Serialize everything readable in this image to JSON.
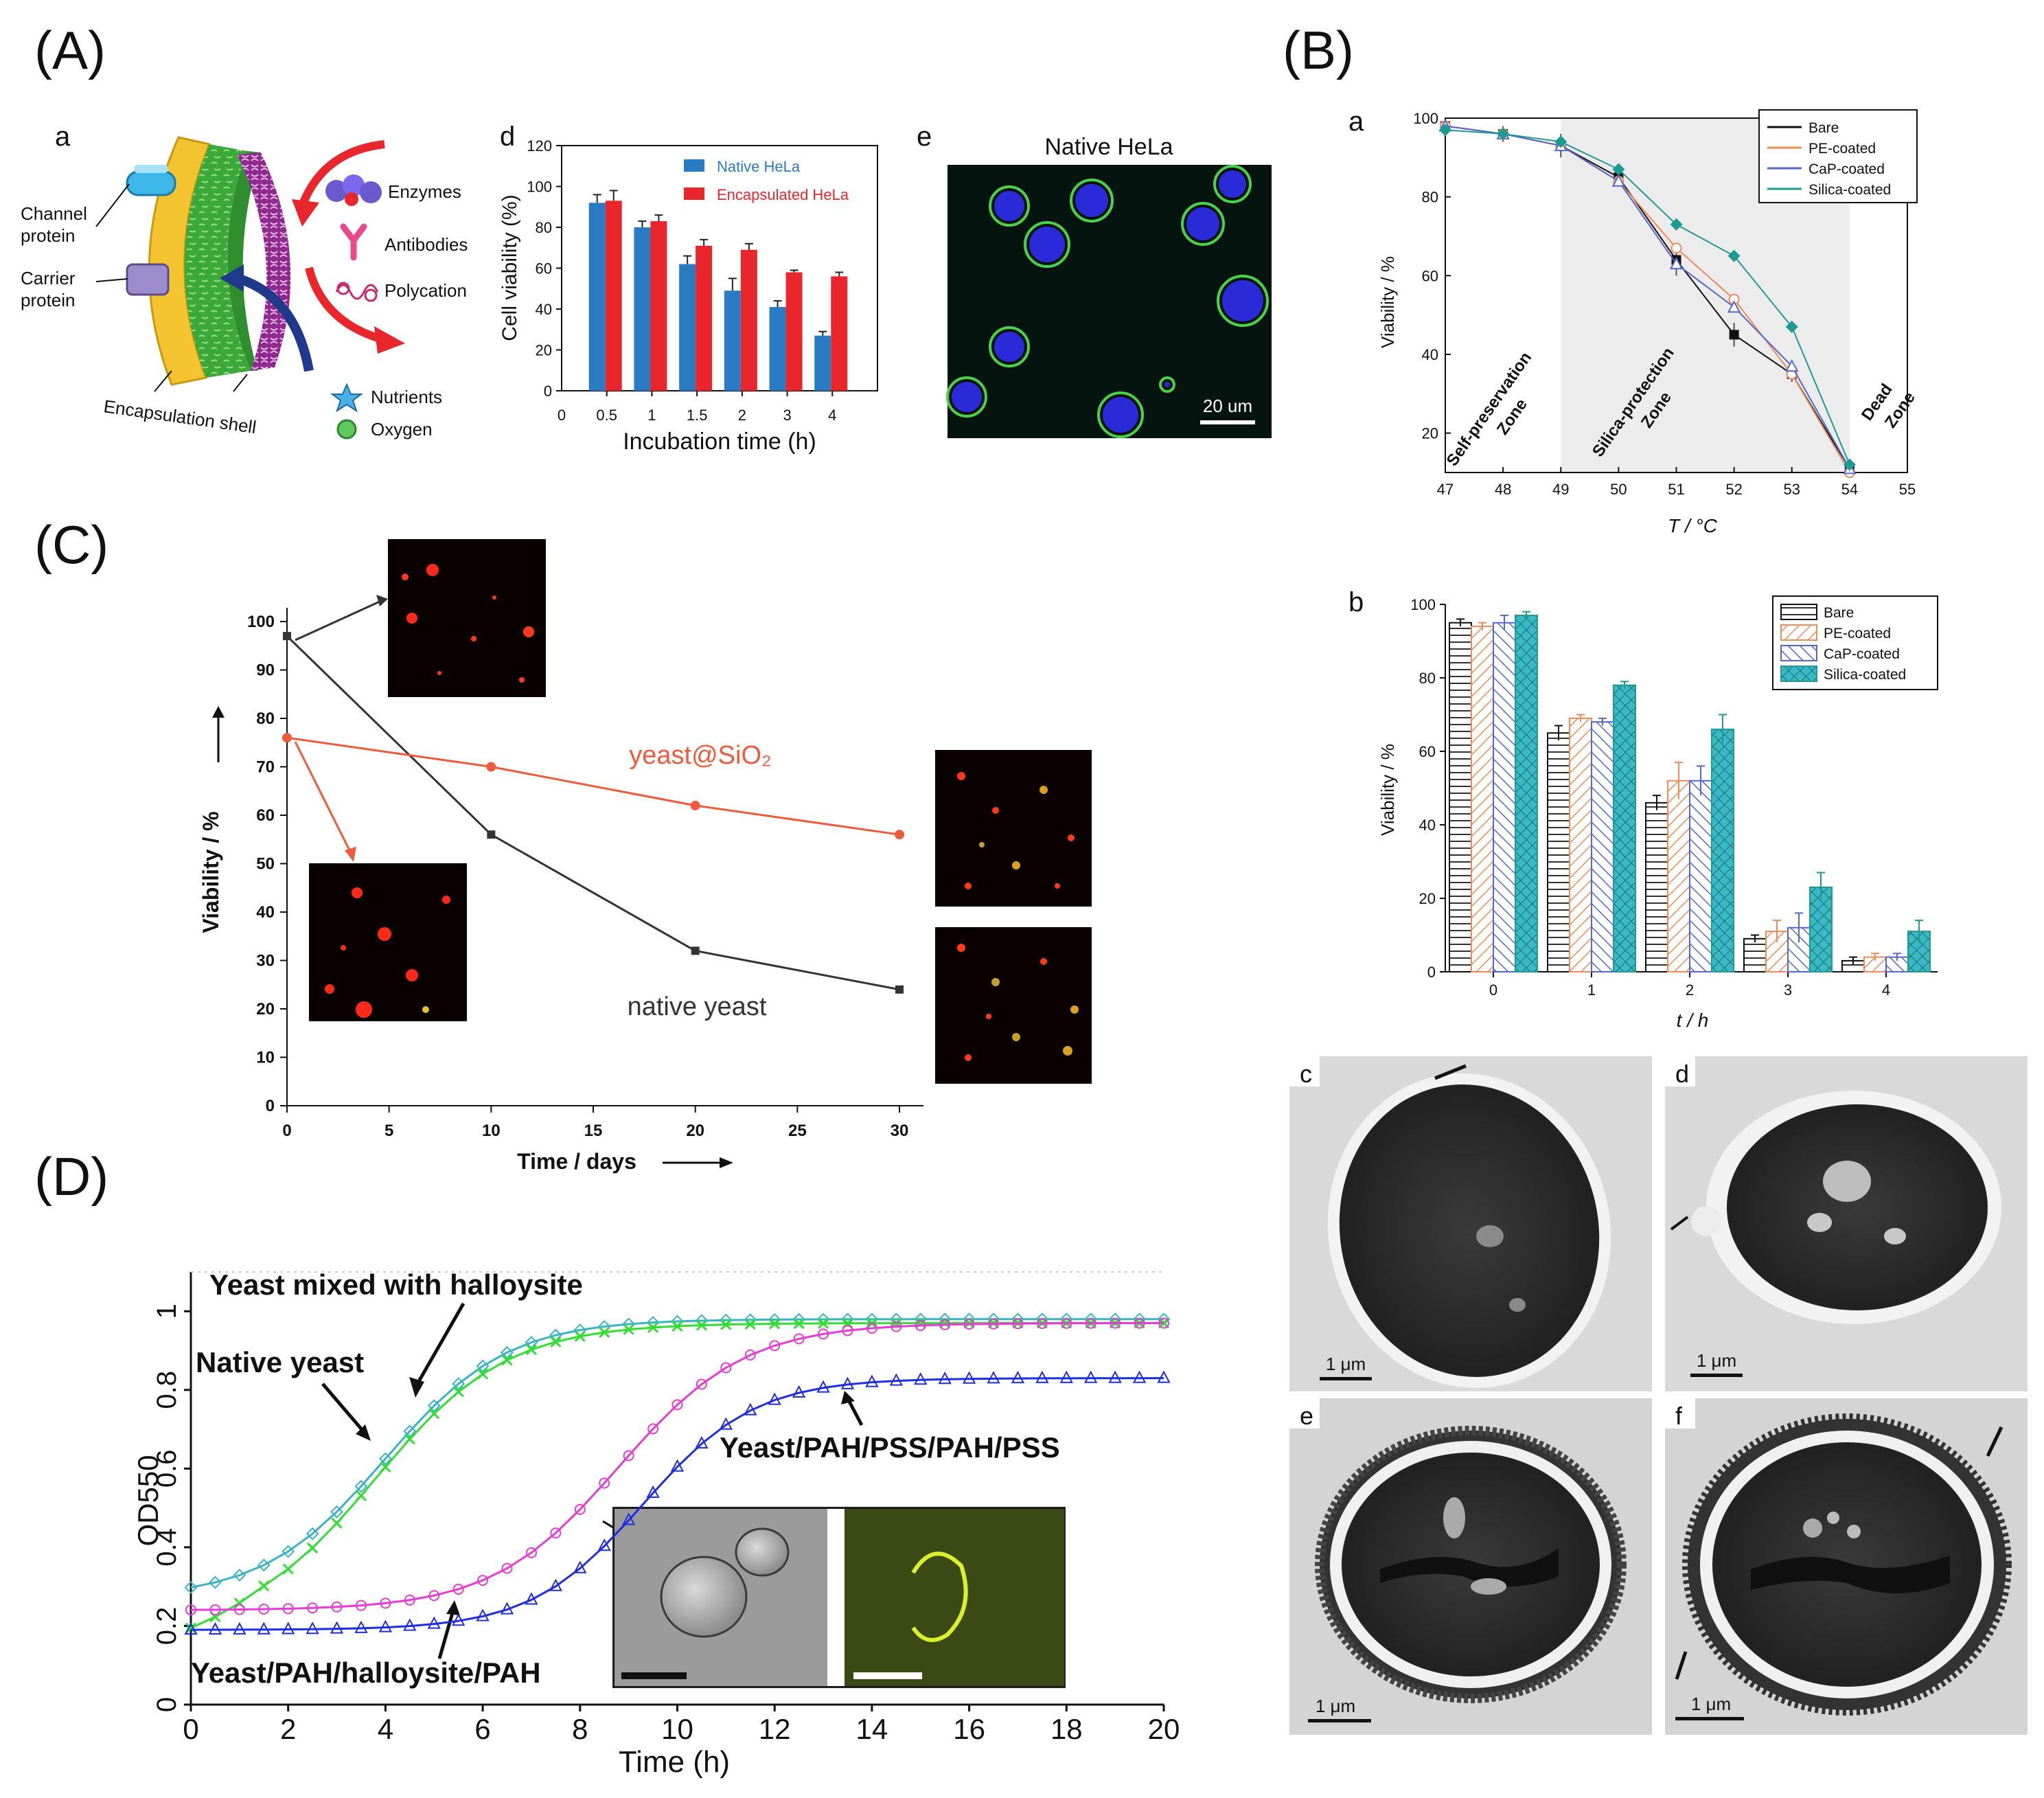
{
  "panel_labels": {
    "A": "(A)",
    "B": "(B)",
    "C": "(C)",
    "D": "(D)"
  },
  "colors": {
    "native": "#2a7ac4",
    "encap": "#e8262b",
    "bare": "#111111",
    "pe": "#f08a58",
    "cap": "#5566cc",
    "silica": "#1f9a93",
    "red_line": "#f05a3a",
    "pink": "#e63bd4",
    "blue": "#1f2de0",
    "green": "#33dd33",
    "cyan": "#3ab3c8"
  },
  "schematic_a": {
    "sub": "a",
    "channel": [
      "Channel",
      "protein"
    ],
    "carrier": [
      "Carrier",
      "protein"
    ],
    "enzymes": "Enzymes",
    "antibodies": "Antibodies",
    "polycation": "Polycation",
    "nutrients": "Nutrients",
    "oxygen": "Oxygen",
    "shell": "Encapsulation shell"
  },
  "micro_e": {
    "sub": "e",
    "title": "Native HeLa",
    "scale": "20 um"
  },
  "tem": [
    {
      "sub": "c",
      "scale": "1 μm"
    },
    {
      "sub": "d",
      "scale": "1 μm"
    },
    {
      "sub": "e",
      "scale": "1 μm"
    },
    {
      "sub": "f",
      "scale": "1 μm"
    }
  ],
  "chart_data": [
    {
      "id": "A-d",
      "sub": "d",
      "type": "bar",
      "categories": [
        "0.5",
        "1",
        "1.5",
        "2",
        "3",
        "4"
      ],
      "extra_tick": "0",
      "series": [
        {
          "name": "Native HeLa",
          "values": [
            92,
            80,
            62,
            49,
            41,
            27
          ],
          "errors": [
            4,
            3,
            4,
            6,
            3,
            2
          ]
        },
        {
          "name": "Encapsulated HeLa",
          "values": [
            93,
            83,
            71,
            69,
            58,
            56
          ],
          "errors": [
            5,
            3,
            3,
            3,
            1,
            2
          ]
        }
      ],
      "xlabel": "Incubation time (h)",
      "ylabel": "Cell viability (%)",
      "ylim": [
        0,
        120
      ],
      "yticks": [
        0,
        20,
        40,
        60,
        80,
        100,
        120
      ]
    },
    {
      "id": "B-a",
      "sub": "a",
      "type": "line",
      "x": [
        47,
        48,
        49,
        50,
        51,
        52,
        53,
        54
      ],
      "xticks": [
        47,
        48,
        49,
        50,
        51,
        52,
        53,
        54,
        55
      ],
      "series": [
        {
          "name": "Bare",
          "values": [
            98,
            96,
            93,
            85,
            64,
            45,
            35,
            11
          ]
        },
        {
          "name": "PE-coated",
          "values": [
            98,
            96,
            93,
            84,
            67,
            54,
            35,
            10
          ]
        },
        {
          "name": "CaP-coated",
          "values": [
            98,
            96,
            93,
            84,
            63,
            52,
            37,
            11
          ]
        },
        {
          "name": "Silica-coated",
          "values": [
            97,
            96,
            94,
            87,
            73,
            65,
            47,
            12
          ]
        }
      ],
      "errors": [
        1,
        2,
        3,
        2,
        4,
        3,
        2,
        1
      ],
      "zones": [
        "Self-preservation Zone",
        "Silica-protection Zone",
        "Dead Zone"
      ],
      "xlabel": "T / °C",
      "ylabel": "Viability  / %",
      "xlim": [
        47,
        55
      ],
      "ylim": [
        10,
        100
      ],
      "yticks": [
        20,
        40,
        60,
        80,
        100
      ]
    },
    {
      "id": "B-b",
      "sub": "b",
      "type": "bar",
      "categories": [
        "0",
        "1",
        "2",
        "3",
        "4"
      ],
      "series": [
        {
          "name": "Bare",
          "values": [
            95,
            65,
            46,
            9,
            3
          ],
          "errors": [
            1,
            2,
            2,
            1,
            1
          ]
        },
        {
          "name": "PE-coated",
          "values": [
            94,
            69,
            52,
            11,
            4
          ],
          "errors": [
            1,
            1,
            5,
            3,
            1
          ]
        },
        {
          "name": "CaP-coated",
          "values": [
            95,
            68,
            52,
            12,
            4
          ],
          "errors": [
            2,
            1,
            4,
            4,
            1
          ]
        },
        {
          "name": "Silica-coated",
          "values": [
            97,
            78,
            66,
            23,
            11
          ],
          "errors": [
            1,
            1,
            4,
            4,
            3
          ]
        }
      ],
      "xlabel": "t / h",
      "ylabel": "Viability  / %",
      "ylim": [
        0,
        100
      ],
      "yticks": [
        0,
        20,
        40,
        60,
        80,
        100
      ]
    },
    {
      "id": "C",
      "type": "line",
      "series": [
        {
          "name": "native yeast",
          "x": [
            0,
            10,
            20,
            30
          ],
          "values": [
            97,
            56,
            32,
            24
          ]
        },
        {
          "name": "yeast@SiO₂",
          "x": [
            0,
            10,
            20,
            30
          ],
          "values": [
            76,
            70,
            62,
            56
          ]
        }
      ],
      "xlabel": "Time / days",
      "ylabel": "Viability / %",
      "xlim": [
        0,
        30
      ],
      "ylim": [
        0,
        100
      ],
      "xticks": [
        0,
        5,
        10,
        15,
        20,
        25,
        30
      ],
      "yticks": [
        0,
        10,
        20,
        30,
        40,
        50,
        60,
        70,
        80,
        90,
        100
      ]
    },
    {
      "id": "D",
      "type": "line",
      "x_step": 0.5,
      "x_start": 0,
      "series": [
        {
          "name": "Yeast mixed with halloysite",
          "marker": "diamond",
          "logistic": [
            0.27,
            0.98,
            4.0,
            1.25
          ],
          "start": 0.27
        },
        {
          "name": "Native yeast",
          "marker": "x",
          "logistic": [
            0.18,
            0.97,
            3.8,
            1.35
          ],
          "start": 0.2
        },
        {
          "name": "Yeast/PAH/halloysite/PAH",
          "marker": "circle",
          "logistic": [
            0.24,
            0.97,
            8.8,
            1.3
          ],
          "start": 0.24
        },
        {
          "name": "Yeast/PAH/PSS/PAH/PSS",
          "marker": "triangle",
          "logistic": [
            0.19,
            0.83,
            9.3,
            1.15
          ],
          "start": 0.19
        }
      ],
      "xlabel": "Time (h)",
      "ylabel": "OD550",
      "xlim": [
        0,
        20
      ],
      "ylim": [
        0,
        1.1
      ],
      "xticks": [
        0,
        2,
        4,
        6,
        8,
        10,
        12,
        14,
        16,
        18,
        20
      ],
      "yticks": [
        "0",
        "0.2",
        "0.4",
        "0.6",
        "0.8",
        "1"
      ]
    }
  ]
}
